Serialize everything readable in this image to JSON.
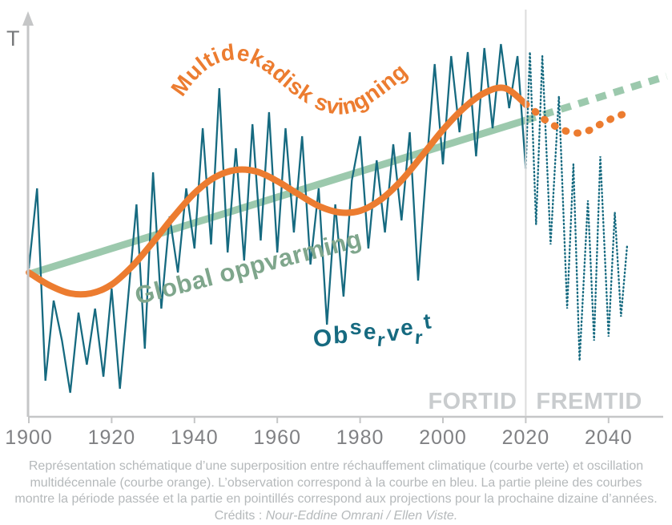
{
  "labels": {
    "y_axis": "T",
    "oscillation": "Multidekadisk svingning",
    "warming": "Global oppvarming",
    "observed": "Observert",
    "past": "FORTID",
    "future": "FREMTID"
  },
  "caption": {
    "text": "Représentation schématique d’une superposition entre réchauffement climatique (courbe verte) et oscillation multidécennale (courbe orange). L’observation correspond à la courbe en bleu. La partie pleine des courbes montre la période passée et la partie en pointillés correspond aux projections pour la prochaine dizaine d’années. ",
    "credits_label": "Crédits : ",
    "credits": "Nour-Eddine Omrani / Ellen Viste."
  },
  "colors": {
    "warming_green": "#9CC9AD",
    "warming_text_green": "#7FA68C",
    "oscillation_orange": "#EC7C30",
    "observed_teal": "#166A80",
    "axis_gray": "#C5C6C7",
    "tick_label_gray": "#808184",
    "period_label_gray": "#C9CCCE",
    "divider_gray": "#DCDCDC",
    "t_label_gray": "#77797B",
    "caption_gray": "#B5B9BB"
  },
  "chart_data": {
    "type": "line",
    "title": "",
    "ylabel": "T",
    "xlabel": "",
    "x_ticks": [
      1900,
      1920,
      1940,
      1960,
      1980,
      2000,
      2020,
      2040
    ],
    "x_range": [
      1900,
      2054
    ],
    "divider_year": 2020,
    "y_unit": "schematic temperature anomaly (no numeric scale shown)",
    "legend_position": "labels drawn on curves",
    "grid": false,
    "series": [
      {
        "id": "warming",
        "name": "Global oppvarming",
        "style": "thick straight line, solid before 2020, dashed after",
        "color_key": "warming_green",
        "solid": [
          [
            1900,
            -0.02
          ],
          [
            2020,
            1.9
          ]
        ],
        "projected": [
          [
            2020,
            1.9
          ],
          [
            2054,
            2.45
          ]
        ]
      },
      {
        "id": "oscillation",
        "name": "Multidekadisk svingning",
        "style": "thick smooth multidecadal wave, solid before 2020, dotted after",
        "color_key": "oscillation_orange",
        "solid": [
          [
            1900,
            0.0
          ],
          [
            1905,
            -0.16
          ],
          [
            1910,
            -0.26
          ],
          [
            1915,
            -0.26
          ],
          [
            1920,
            -0.15
          ],
          [
            1925,
            0.08
          ],
          [
            1930,
            0.38
          ],
          [
            1935,
            0.7
          ],
          [
            1940,
            0.99
          ],
          [
            1945,
            1.19
          ],
          [
            1950,
            1.28
          ],
          [
            1955,
            1.26
          ],
          [
            1960,
            1.14
          ],
          [
            1965,
            0.98
          ],
          [
            1970,
            0.83
          ],
          [
            1975,
            0.75
          ],
          [
            1980,
            0.77
          ],
          [
            1985,
            0.91
          ],
          [
            1990,
            1.15
          ],
          [
            1995,
            1.46
          ],
          [
            2000,
            1.78
          ],
          [
            2005,
            2.05
          ],
          [
            2010,
            2.24
          ],
          [
            2015,
            2.3
          ],
          [
            2020,
            2.1
          ]
        ],
        "projected": [
          [
            2020,
            2.1
          ],
          [
            2022,
            2.02
          ],
          [
            2024,
            1.93
          ],
          [
            2026,
            1.86
          ],
          [
            2028,
            1.8
          ],
          [
            2030,
            1.76
          ],
          [
            2032,
            1.74
          ],
          [
            2034,
            1.75
          ],
          [
            2036,
            1.79
          ],
          [
            2038,
            1.85
          ],
          [
            2040,
            1.9
          ],
          [
            2042,
            1.95
          ],
          [
            2044,
            1.98
          ]
        ]
      },
      {
        "id": "observed",
        "name": "Observert",
        "style": "thin jagged yearly line, solid before 2020, dotted after",
        "color_key": "observed_teal",
        "solid": [
          [
            1900,
            0.05
          ],
          [
            1902,
            1.05
          ],
          [
            1904,
            -1.35
          ],
          [
            1906,
            -0.35
          ],
          [
            1908,
            -0.85
          ],
          [
            1910,
            -1.5
          ],
          [
            1912,
            -0.5
          ],
          [
            1914,
            -1.15
          ],
          [
            1916,
            -0.45
          ],
          [
            1918,
            -1.3
          ],
          [
            1920,
            -0.2
          ],
          [
            1922,
            -1.45
          ],
          [
            1924,
            -0.3
          ],
          [
            1926,
            0.85
          ],
          [
            1928,
            -0.95
          ],
          [
            1930,
            1.25
          ],
          [
            1932,
            -0.45
          ],
          [
            1934,
            0.7
          ],
          [
            1936,
            0.0
          ],
          [
            1938,
            1.05
          ],
          [
            1940,
            0.3
          ],
          [
            1942,
            1.8
          ],
          [
            1944,
            0.35
          ],
          [
            1946,
            2.3
          ],
          [
            1948,
            0.25
          ],
          [
            1950,
            1.55
          ],
          [
            1952,
            0.15
          ],
          [
            1954,
            1.85
          ],
          [
            1956,
            0.4
          ],
          [
            1958,
            2.0
          ],
          [
            1960,
            0.25
          ],
          [
            1962,
            1.8
          ],
          [
            1964,
            0.5
          ],
          [
            1966,
            1.7
          ],
          [
            1968,
            0.1
          ],
          [
            1970,
            1.05
          ],
          [
            1972,
            -0.65
          ],
          [
            1974,
            0.85
          ],
          [
            1976,
            -0.3
          ],
          [
            1978,
            1.15
          ],
          [
            1980,
            1.7
          ],
          [
            1982,
            0.3
          ],
          [
            1984,
            1.4
          ],
          [
            1986,
            0.5
          ],
          [
            1988,
            1.6
          ],
          [
            1990,
            0.65
          ],
          [
            1992,
            1.75
          ],
          [
            1994,
            -0.1
          ],
          [
            1996,
            1.3
          ],
          [
            1998,
            2.6
          ],
          [
            2000,
            1.35
          ],
          [
            2002,
            2.7
          ],
          [
            2004,
            1.75
          ],
          [
            2006,
            2.75
          ],
          [
            2008,
            1.45
          ],
          [
            2010,
            2.8
          ],
          [
            2012,
            1.8
          ],
          [
            2014,
            2.85
          ],
          [
            2016,
            2.05
          ],
          [
            2018,
            2.7
          ],
          [
            2020,
            1.3
          ]
        ],
        "projected": [
          [
            2020,
            1.3
          ],
          [
            2021,
            2.75
          ],
          [
            2022.5,
            0.6
          ],
          [
            2024,
            2.7
          ],
          [
            2026,
            0.35
          ],
          [
            2028,
            2.2
          ],
          [
            2030,
            -0.45
          ],
          [
            2031.5,
            1.35
          ],
          [
            2033,
            -1.1
          ],
          [
            2035,
            0.9
          ],
          [
            2036.5,
            -0.85
          ],
          [
            2038,
            1.45
          ],
          [
            2040,
            -0.8
          ],
          [
            2041.5,
            0.75
          ],
          [
            2043,
            -0.55
          ],
          [
            2044.5,
            0.35
          ]
        ]
      }
    ]
  }
}
